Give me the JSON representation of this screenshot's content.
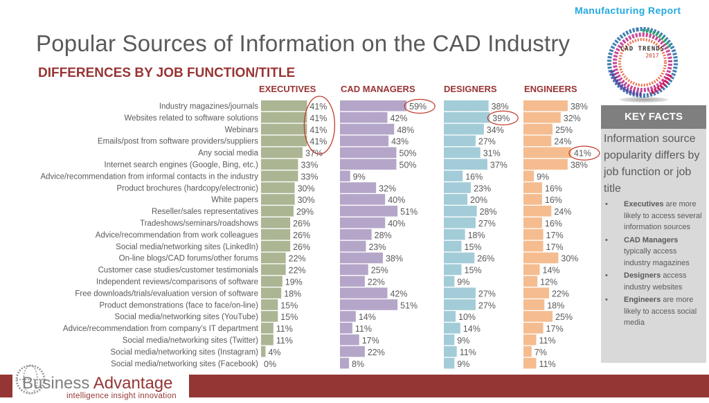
{
  "header": {
    "title": "Popular Sources of Information on the CAD Industry",
    "subtitle": "DIFFERENCES BY JOB FUNCTION/TITLE",
    "report_label": "Manufacturing Report",
    "logo_text": "CAD TRENDS",
    "logo_year": "2017"
  },
  "chart_data": {
    "type": "bar",
    "orientation": "horizontal",
    "title": "Popular Sources of Information on the CAD Industry",
    "subtitle": "DIFFERENCES BY JOB FUNCTION/TITLE",
    "unit": "%",
    "xlim": [
      0,
      60
    ],
    "categories": [
      "Industry magazines/journals",
      "Websites related to software solutions",
      "Webinars",
      "Emails/post from software providers/suppliers",
      "Any social media",
      "Internet search engines (Google, Bing, etc.)",
      "Advice/recommendation from informal contacts in the industry",
      "Product brochures (hardcopy/electronic)",
      "White papers",
      "Reseller/sales representatives",
      "Tradeshows/seminars/roadshows",
      "Advice/recommendation from work colleagues",
      "Social media/networking sites (LinkedIn)",
      "On-line blogs/CAD forums/other forums",
      "Customer case studies/customer testimonials",
      "Independent reviews/comparisons of software",
      "Free downloads/trials/evaluation version of software",
      "Product demonstrations (face to face/on-line)",
      "Social media/networking sites (YouTube)",
      "Advice/recommendation from company’s IT department",
      "Social media/networking sites (Twitter)",
      "Social media/networking sites (Instagram)",
      "Social media/networking sites (Facebook)"
    ],
    "series": [
      {
        "name": "EXECUTIVES",
        "color": "#9aa67c",
        "values": [
          41,
          41,
          41,
          41,
          37,
          33,
          33,
          30,
          30,
          29,
          26,
          26,
          26,
          22,
          22,
          19,
          18,
          15,
          15,
          11,
          11,
          4,
          0
        ],
        "highlighted": [
          0,
          1,
          2,
          3
        ]
      },
      {
        "name": "CAD MANAGERS",
        "color": "#a593bd",
        "values": [
          59,
          42,
          48,
          43,
          50,
          50,
          9,
          32,
          40,
          51,
          40,
          28,
          23,
          38,
          25,
          22,
          42,
          51,
          14,
          11,
          17,
          22,
          8
        ],
        "highlighted": [
          0
        ]
      },
      {
        "name": "DESIGNERS",
        "color": "#8fc1d0",
        "values": [
          38,
          39,
          34,
          27,
          31,
          37,
          16,
          23,
          20,
          28,
          27,
          18,
          15,
          26,
          15,
          9,
          27,
          27,
          10,
          14,
          9,
          11,
          9
        ],
        "highlighted": [
          1
        ]
      },
      {
        "name": "ENGINEERS",
        "color": "#f2ae78",
        "values": [
          38,
          32,
          25,
          24,
          41,
          38,
          9,
          16,
          16,
          24,
          16,
          17,
          17,
          30,
          14,
          12,
          22,
          18,
          25,
          17,
          11,
          7,
          11
        ],
        "highlighted": [
          4
        ]
      }
    ],
    "highlight_color": "#c0392b",
    "grid": false,
    "legend": "none"
  },
  "key_facts": {
    "heading": "KEY FACTS",
    "summary": "Information source popularity differs by job function or job title",
    "bullet_symbol": "•",
    "bullets": [
      {
        "bold": "Executives",
        "text": " are more likely to access several information sources"
      },
      {
        "bold": "CAD Managers",
        "text": " typically access industry magazines"
      },
      {
        "bold": "Designers",
        "text": " access industry websites"
      },
      {
        "bold": "Engineers",
        "text": " are more likely to access social media"
      }
    ]
  },
  "footer": {
    "brand_part1": "Business",
    "brand_part2": "Advantage",
    "tagline": "intelligence  insight  innovation"
  }
}
